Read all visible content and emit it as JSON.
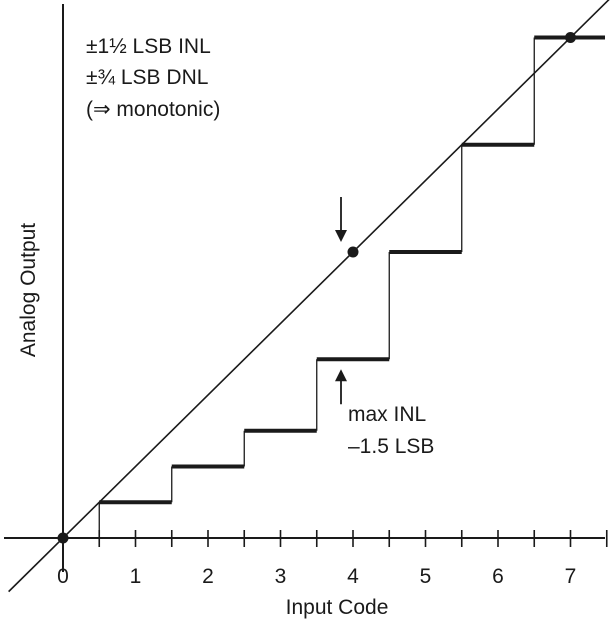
{
  "chart_data": {
    "type": "line",
    "title": "",
    "xlabel": "Input Code",
    "ylabel": "Analog Output",
    "x_ticks": [
      "0",
      "1",
      "2",
      "3",
      "4",
      "5",
      "6",
      "7"
    ],
    "xlim": [
      0,
      7.5
    ],
    "ylim": [
      0,
      7.5
    ],
    "grid": false,
    "ideal_line": {
      "from": [
        0,
        0
      ],
      "to": [
        7.5,
        7.5
      ]
    },
    "steps": [
      {
        "code": 1,
        "level": 0.5
      },
      {
        "code": 2,
        "level": 1.0
      },
      {
        "code": 3,
        "level": 1.5
      },
      {
        "code": 4,
        "level": 2.5
      },
      {
        "code": 5,
        "level": 4.0
      },
      {
        "code": 6,
        "level": 5.5
      },
      {
        "code": 7,
        "level": 7.0
      }
    ],
    "highlight_points": [
      {
        "x": 0,
        "y": 0
      },
      {
        "x": 4,
        "y": 4
      },
      {
        "x": 7,
        "y": 7
      }
    ],
    "annotations": {
      "specs": [
        "±1½ LSB INL",
        "±¾ LSB DNL",
        "(⇒ monotonic)"
      ],
      "max_inl": [
        "max INL",
        "–1.5 LSB"
      ],
      "max_inl_code": 4
    }
  }
}
